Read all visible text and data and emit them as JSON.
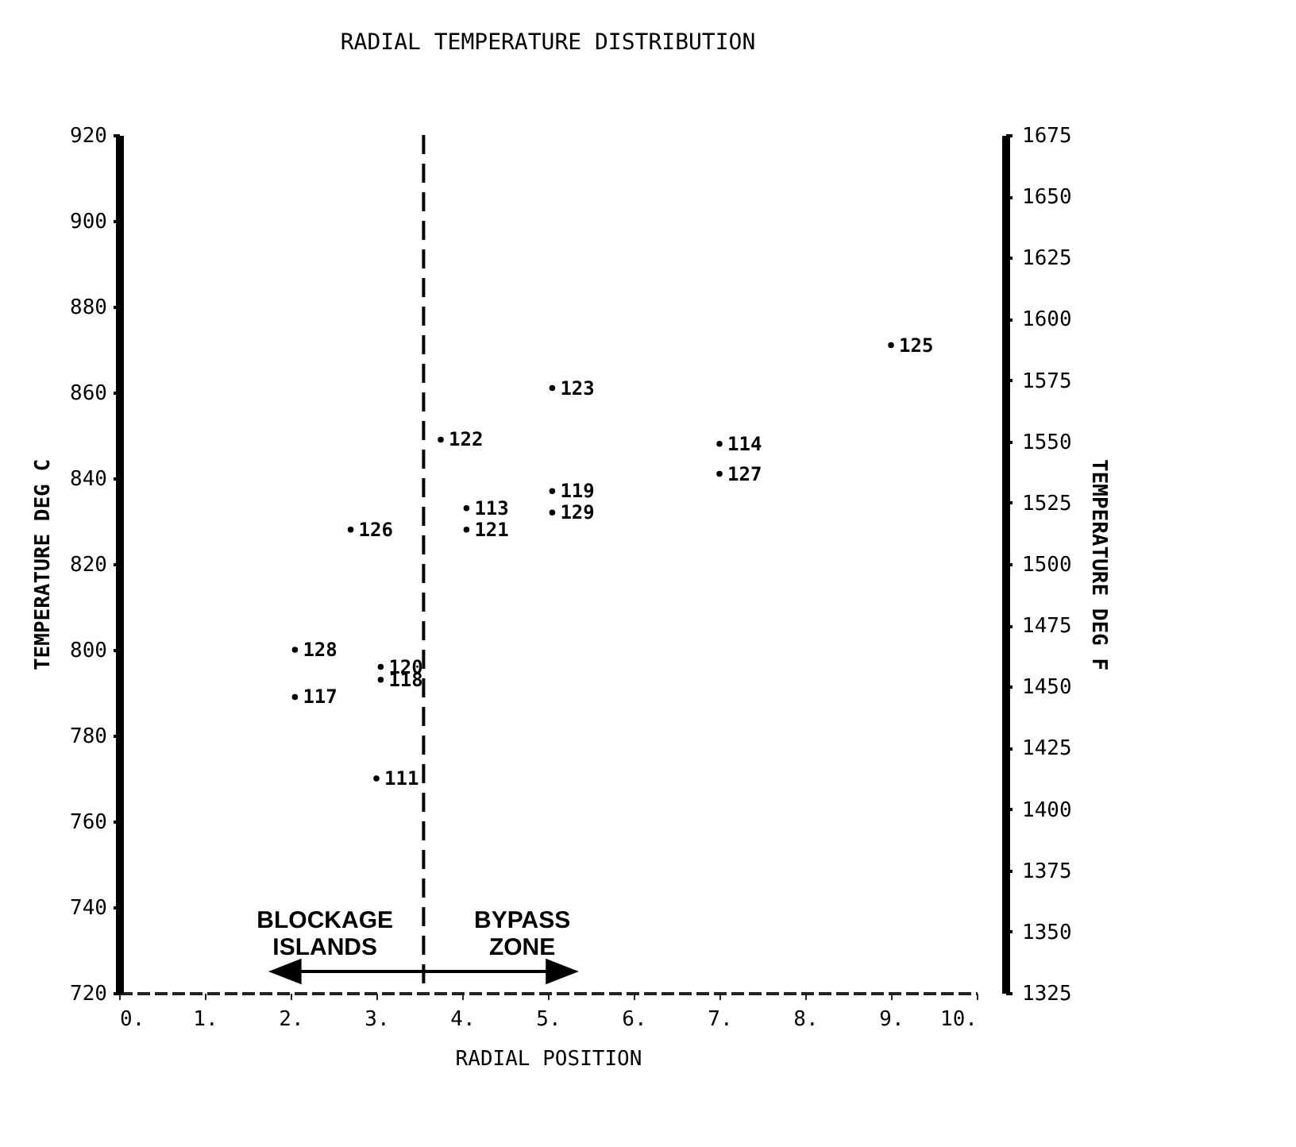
{
  "chart_data": {
    "type": "scatter",
    "title": "RADIAL TEMPERATURE DISTRIBUTION",
    "xlabel": "RADIAL POSITION",
    "ylabel": "TEMPERATURE DEG C",
    "y2label": "TEMPERATURE DEG F",
    "x": [
      2.05,
      2.05,
      3.05,
      3.05,
      2.7,
      3.0,
      3.75,
      4.05,
      4.05,
      5.05,
      5.05,
      5.05,
      7.0,
      7.0,
      9.0
    ],
    "series": [
      {
        "color": "#000000",
        "values": [
          800,
          789,
          796,
          793,
          828,
          770,
          849,
          833,
          828,
          861,
          837,
          832,
          848,
          841,
          871
        ]
      }
    ],
    "marker": "circle",
    "grid": false,
    "xlim": [
      0,
      10
    ],
    "xticks": [
      {
        "value": 0,
        "label": "0."
      },
      {
        "value": 1,
        "label": "1."
      },
      {
        "value": 2,
        "label": "2."
      },
      {
        "value": 3,
        "label": "3."
      },
      {
        "value": 4,
        "label": "4."
      },
      {
        "value": 5,
        "label": "5."
      },
      {
        "value": 6,
        "label": "6."
      },
      {
        "value": 7,
        "label": "7."
      },
      {
        "value": 8,
        "label": "8."
      },
      {
        "value": 9,
        "label": "9."
      },
      {
        "value": 10,
        "label": "10."
      }
    ],
    "ylim": [
      720,
      920
    ],
    "yticks": [
      720,
      740,
      760,
      780,
      800,
      820,
      840,
      860,
      880,
      900,
      920
    ],
    "y2lim": [
      1325,
      1675
    ],
    "y2ticks": [
      1325,
      1350,
      1375,
      1400,
      1425,
      1450,
      1475,
      1500,
      1525,
      1550,
      1575,
      1600,
      1625,
      1650,
      1675
    ],
    "ref_lines": [
      {
        "axis": "x",
        "value": 3.55,
        "line_style": "dashed",
        "color": "#000000"
      }
    ],
    "annotations": [
      "BLOCKAGE\nISLANDS",
      "BYPASS\nZONE",
      {
        "text": "128",
        "x": 2.05,
        "y": 800
      },
      {
        "text": "117",
        "x": 2.05,
        "y": 789
      },
      {
        "text": "120",
        "x": 3.05,
        "y": 796
      },
      {
        "text": "118",
        "x": 3.05,
        "y": 793
      },
      {
        "text": "126",
        "x": 2.7,
        "y": 828
      },
      {
        "text": "111",
        "x": 3.0,
        "y": 770
      },
      {
        "text": "122",
        "x": 3.75,
        "y": 849
      },
      {
        "text": "113",
        "x": 4.05,
        "y": 833
      },
      {
        "text": "121",
        "x": 4.05,
        "y": 828
      },
      {
        "text": "123",
        "x": 5.05,
        "y": 861
      },
      {
        "text": "119",
        "x": 5.05,
        "y": 837
      },
      {
        "text": "129",
        "x": 5.05,
        "y": 832
      },
      {
        "text": "114",
        "x": 7.0,
        "y": 848
      },
      {
        "text": "127",
        "x": 7.0,
        "y": 841
      },
      {
        "text": "125",
        "x": 9.0,
        "y": 871
      }
    ]
  }
}
